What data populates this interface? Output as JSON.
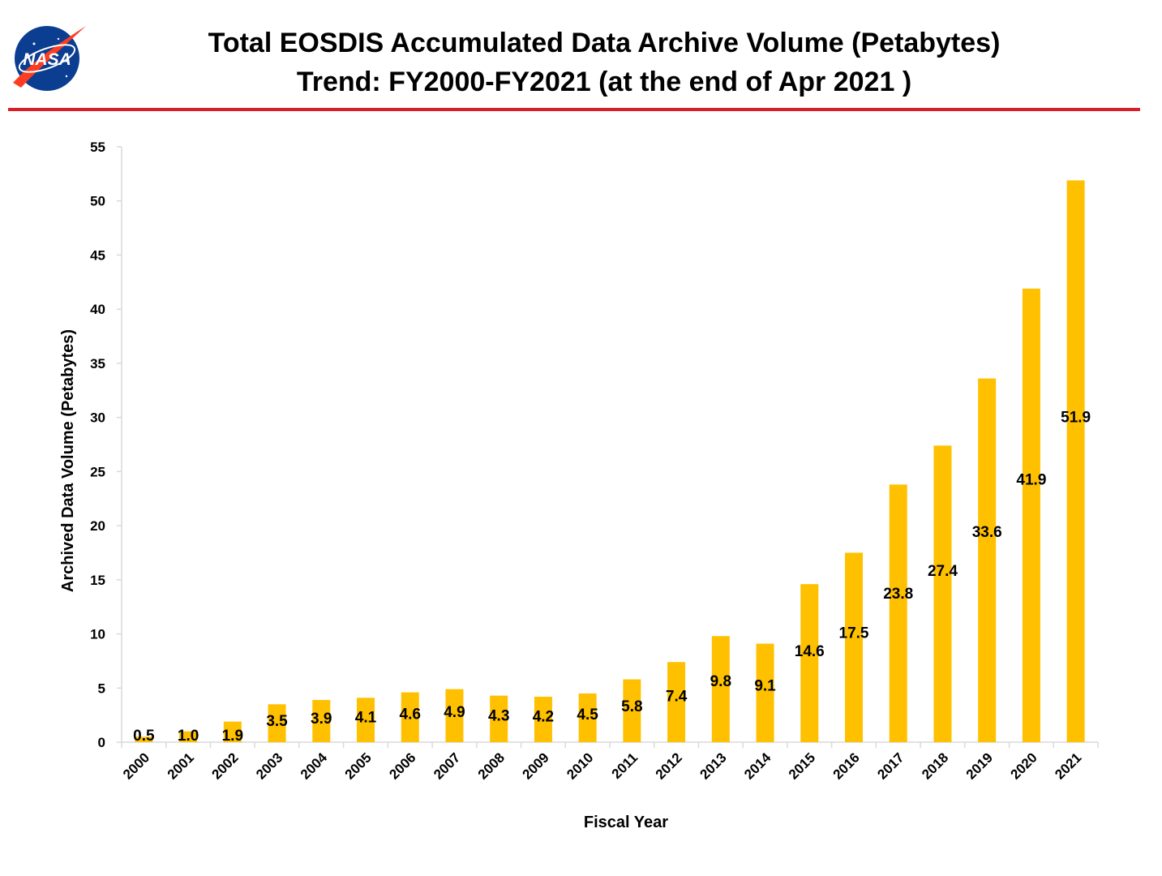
{
  "header": {
    "logo_text": "NASA",
    "title_line1": "Total EOSDIS Accumulated Data Archive Volume (Petabytes)",
    "title_line2": "Trend: FY2000-FY2021 (at the end of Apr 2021 )"
  },
  "colors": {
    "bar": "#FFC000",
    "rule": "#D81E26",
    "logo_blue": "#0B3D91",
    "logo_red": "#FC3D21"
  },
  "chart_data": {
    "type": "bar",
    "title": "Total EOSDIS Accumulated Data Archive Volume (Petabytes) Trend: FY2000-FY2021 (at the end of Apr 2021 )",
    "xlabel": "Fiscal Year",
    "ylabel": "Archived Data Volume (Petabytes)",
    "ylim": [
      0,
      55
    ],
    "yticks": [
      0,
      5,
      10,
      15,
      20,
      25,
      30,
      35,
      40,
      45,
      50,
      55
    ],
    "grid": false,
    "legend": "none",
    "categories": [
      "2000",
      "2001",
      "2002",
      "2003",
      "2004",
      "2005",
      "2006",
      "2007",
      "2008",
      "2009",
      "2010",
      "2011",
      "2012",
      "2013",
      "2014",
      "2015",
      "2016",
      "2017",
      "2018",
      "2019",
      "2020",
      "2021"
    ],
    "values": [
      0.5,
      1.0,
      1.9,
      3.5,
      3.9,
      4.1,
      4.6,
      4.9,
      4.3,
      4.2,
      4.5,
      5.8,
      7.4,
      9.8,
      9.1,
      14.6,
      17.5,
      23.8,
      27.4,
      33.6,
      41.9,
      51.9
    ],
    "value_labels": [
      "0.5",
      "1.0",
      "1.9",
      "3.5",
      "3.9",
      "4.1",
      "4.6",
      "4.9",
      "4.3",
      "4.2",
      "4.5",
      "5.8",
      "7.4",
      "9.8",
      "9.1",
      "14.6",
      "17.5",
      "23.8",
      "27.4",
      "33.6",
      "41.9",
      "51.9"
    ]
  }
}
